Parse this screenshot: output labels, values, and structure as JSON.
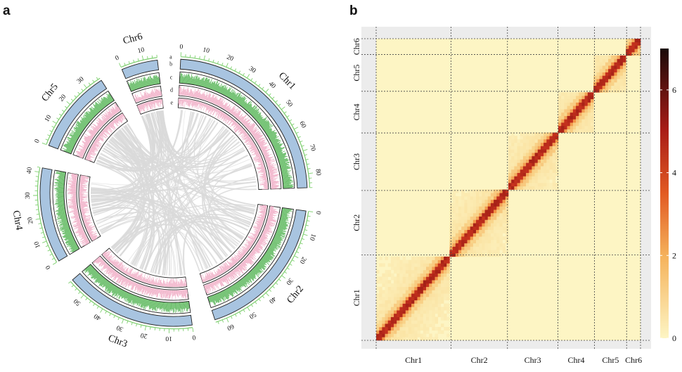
{
  "panel_a": {
    "letter": "a",
    "chromosomes": [
      {
        "name": "Chr1",
        "length": 86,
        "ticks": [
          0,
          10,
          20,
          30,
          40,
          50,
          60,
          70,
          80
        ]
      },
      {
        "name": "Chr2",
        "length": 65,
        "ticks": [
          0,
          10,
          20,
          30,
          40,
          50,
          60
        ]
      },
      {
        "name": "Chr3",
        "length": 58,
        "ticks": [
          0,
          10,
          20,
          30,
          40,
          50
        ]
      },
      {
        "name": "Chr4",
        "length": 42,
        "ticks": [
          0,
          10,
          20,
          30,
          40
        ]
      },
      {
        "name": "Chr5",
        "length": 37,
        "ticks": [
          0,
          10,
          20,
          30
        ]
      },
      {
        "name": "Chr6",
        "length": 16,
        "ticks": [
          0,
          10
        ]
      }
    ],
    "track_labels": [
      "a",
      "b",
      "c",
      "d",
      "e"
    ],
    "colors": {
      "tick_scale": "#7ecf6f",
      "track_b": "#a8c4e0",
      "track_c": "#6cbf6c",
      "track_d": "#f2b6cc",
      "links": "#d9d9d9",
      "outline": "#222222"
    }
  },
  "panel_b": {
    "letter": "b",
    "chromosomes": [
      "Chr1",
      "Chr2",
      "Chr3",
      "Chr4",
      "Chr5",
      "Chr6"
    ],
    "chromosome_sizes": [
      86,
      65,
      58,
      42,
      37,
      16
    ],
    "colorbar": {
      "min": 0,
      "max": 7,
      "ticks": [
        "0",
        "2",
        "4",
        "6"
      ]
    },
    "colors": {
      "background": "#ececec",
      "low": "#fdf5c4",
      "mid": "#f08a3c",
      "high": "#b31e1a",
      "max": "#1a0a08"
    }
  },
  "chart_data": [
    {
      "type": "circos",
      "chromosomes": [
        "Chr1",
        "Chr2",
        "Chr3",
        "Chr4",
        "Chr5",
        "Chr6"
      ],
      "lengths": [
        86,
        65,
        58,
        42,
        37,
        16
      ],
      "tracks": [
        "a",
        "b",
        "c",
        "d",
        "e"
      ]
    },
    {
      "type": "heatmap",
      "x": [
        "Chr1",
        "Chr2",
        "Chr3",
        "Chr4",
        "Chr5",
        "Chr6"
      ],
      "y": [
        "Chr1",
        "Chr2",
        "Chr3",
        "Chr4",
        "Chr5",
        "Chr6"
      ],
      "colorbar_range": [
        0,
        7
      ],
      "colorbar_ticks": [
        0,
        2,
        4,
        6
      ]
    }
  ]
}
